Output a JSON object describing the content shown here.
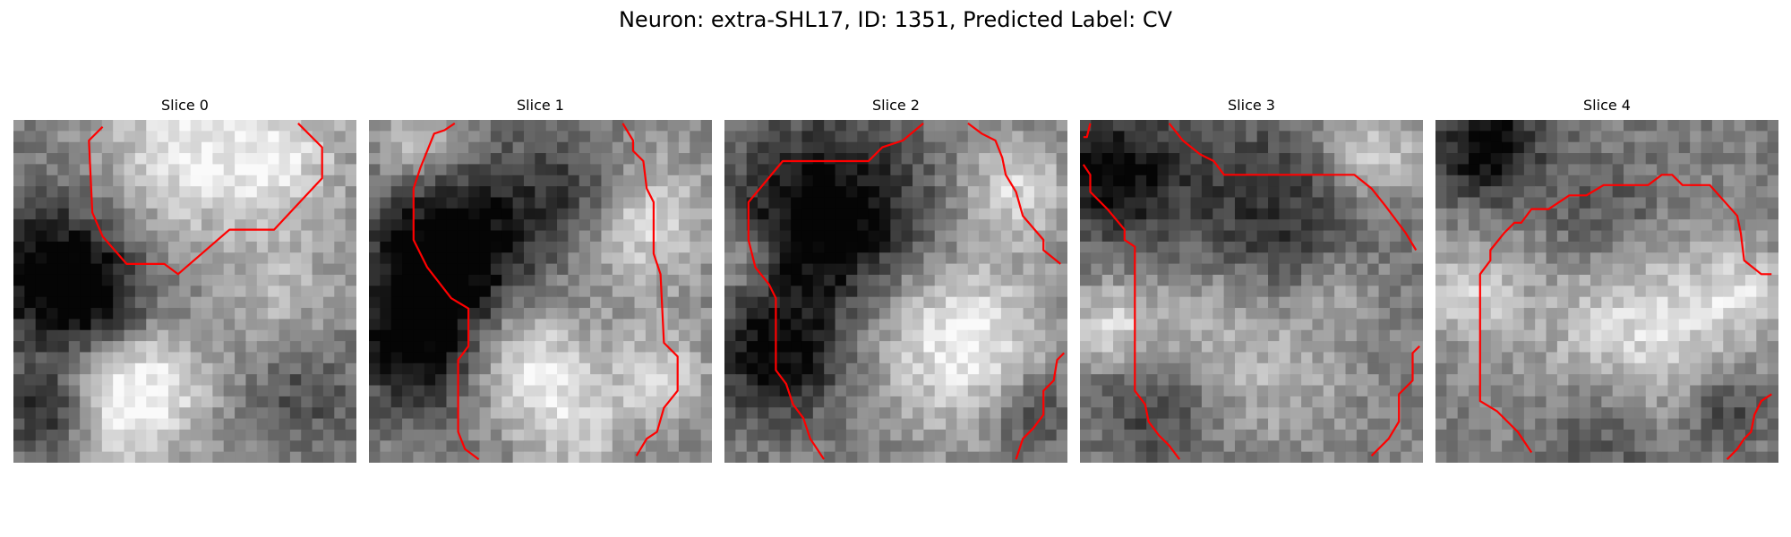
{
  "figure": {
    "title": "Neuron: extra-SHL17, ID: 1351, Predicted Label: CV"
  },
  "panels": [
    {
      "title": "Slice 0"
    },
    {
      "title": "Slice 1"
    },
    {
      "title": "Slice 2"
    },
    {
      "title": "Slice 3"
    },
    {
      "title": "Slice 4"
    }
  ],
  "colors": {
    "contour": "#ff0000",
    "colormap": "gray"
  }
}
